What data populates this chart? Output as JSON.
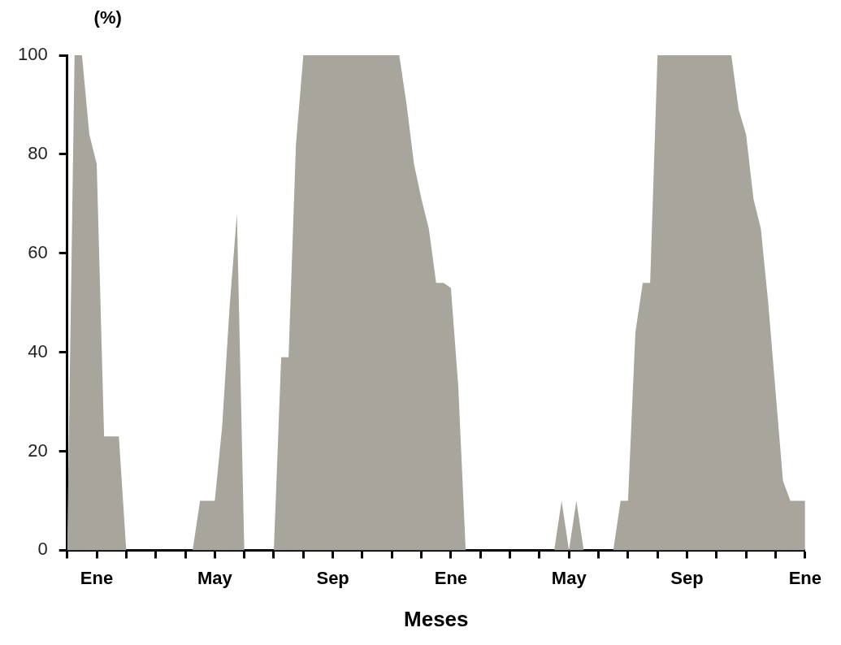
{
  "chart_data": {
    "type": "area",
    "ylabel": "(%)",
    "xlabel": "Meses",
    "categories": [
      null,
      null,
      null,
      null,
      "Ene",
      null,
      null,
      null,
      null,
      null,
      null,
      null,
      null,
      null,
      null,
      null,
      null,
      null,
      null,
      null,
      "May",
      null,
      null,
      null,
      null,
      null,
      null,
      null,
      null,
      null,
      null,
      null,
      null,
      null,
      null,
      null,
      "Sep",
      null,
      null,
      null,
      null,
      null,
      null,
      null,
      null,
      null,
      null,
      null,
      null,
      null,
      null,
      null,
      "Ene",
      null,
      null,
      null,
      null,
      null,
      null,
      null,
      null,
      null,
      null,
      null,
      null,
      null,
      null,
      null,
      "May",
      null,
      null,
      null,
      null,
      null,
      null,
      null,
      null,
      null,
      null,
      null,
      null,
      null,
      null,
      null,
      "Sep",
      null,
      null,
      null,
      null,
      null,
      null,
      null,
      null,
      null,
      null,
      null,
      null,
      null,
      null,
      null,
      "Ene"
    ],
    "ylim": [
      0,
      100
    ],
    "yticks": [
      0,
      20,
      40,
      60,
      80,
      100
    ],
    "grid": false,
    "legend": false,
    "marker": "none",
    "series": [
      {
        "color": "#a7a59c",
        "values": [
          0,
          100,
          100,
          84,
          78,
          23,
          23,
          23,
          0,
          0,
          0,
          0,
          0,
          0,
          0,
          0,
          0,
          0,
          10,
          10,
          10,
          25,
          49,
          68,
          0,
          0,
          0,
          0,
          0,
          39,
          39,
          82,
          100,
          100,
          100,
          100,
          100,
          100,
          100,
          100,
          100,
          100,
          100,
          100,
          100,
          100,
          90,
          78,
          71,
          65,
          54,
          54,
          53,
          33,
          0,
          0,
          0,
          0,
          0,
          0,
          0,
          0,
          0,
          0,
          0,
          0,
          0,
          10,
          0,
          10,
          0,
          0,
          0,
          0,
          0,
          10,
          10,
          44,
          54,
          54,
          100,
          100,
          100,
          100,
          100,
          100,
          100,
          100,
          100,
          100,
          100,
          89,
          84,
          71,
          65,
          50,
          32,
          14,
          10,
          10,
          10
        ]
      }
    ]
  }
}
